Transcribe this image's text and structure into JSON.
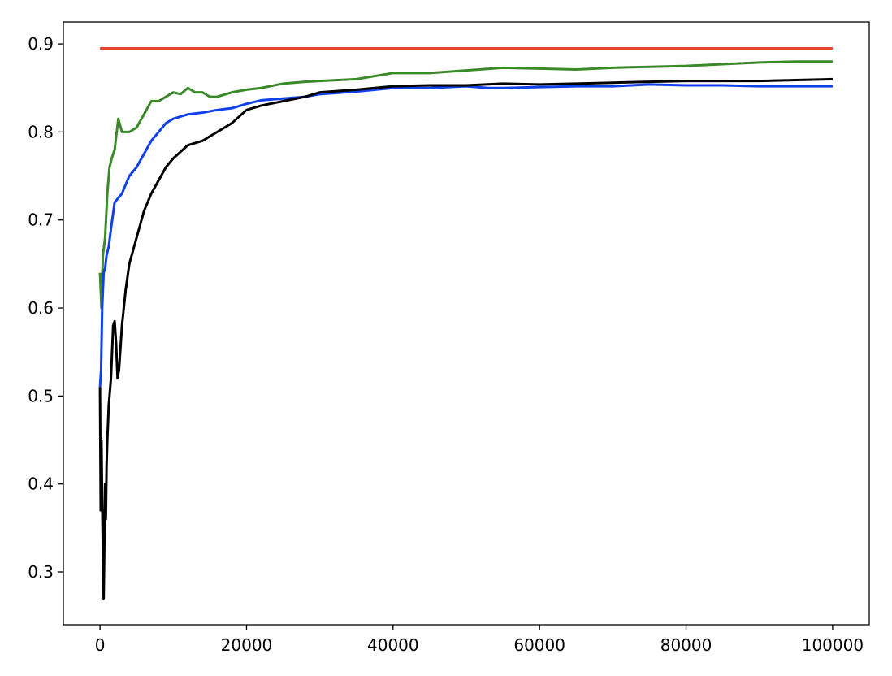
{
  "chart_data": {
    "type": "line",
    "title": "",
    "xlabel": "",
    "ylabel": "",
    "xlim": [
      -5000,
      105000
    ],
    "ylim": [
      0.24,
      0.925
    ],
    "xticks": [
      0,
      20000,
      40000,
      60000,
      80000,
      100000
    ],
    "xtick_labels": [
      "0",
      "20000",
      "40000",
      "60000",
      "80000",
      "100000"
    ],
    "yticks": [
      0.3,
      0.4,
      0.5,
      0.6,
      0.7,
      0.8,
      0.9
    ],
    "ytick_labels": [
      "0.3",
      "0.4",
      "0.5",
      "0.6",
      "0.7",
      "0.8",
      "0.9"
    ],
    "grid": false,
    "legend": "none",
    "series": [
      {
        "color": "#e8432d",
        "points": [
          [
            0,
            0.895
          ],
          [
            100000,
            0.895
          ]
        ]
      },
      {
        "color": "#3a8a2a",
        "points": [
          [
            0,
            0.64
          ],
          [
            200,
            0.6
          ],
          [
            400,
            0.66
          ],
          [
            700,
            0.68
          ],
          [
            1000,
            0.73
          ],
          [
            1300,
            0.76
          ],
          [
            1600,
            0.77
          ],
          [
            2000,
            0.78
          ],
          [
            2500,
            0.815
          ],
          [
            3000,
            0.8
          ],
          [
            3500,
            0.8
          ],
          [
            4000,
            0.8
          ],
          [
            5000,
            0.805
          ],
          [
            6000,
            0.82
          ],
          [
            7000,
            0.835
          ],
          [
            8000,
            0.835
          ],
          [
            9000,
            0.84
          ],
          [
            10000,
            0.845
          ],
          [
            11000,
            0.843
          ],
          [
            12000,
            0.85
          ],
          [
            13000,
            0.845
          ],
          [
            14000,
            0.845
          ],
          [
            15000,
            0.84
          ],
          [
            16000,
            0.84
          ],
          [
            18000,
            0.845
          ],
          [
            20000,
            0.848
          ],
          [
            22000,
            0.85
          ],
          [
            25000,
            0.855
          ],
          [
            28000,
            0.857
          ],
          [
            30000,
            0.858
          ],
          [
            35000,
            0.86
          ],
          [
            40000,
            0.867
          ],
          [
            45000,
            0.867
          ],
          [
            50000,
            0.87
          ],
          [
            55000,
            0.873
          ],
          [
            60000,
            0.872
          ],
          [
            65000,
            0.871
          ],
          [
            70000,
            0.873
          ],
          [
            75000,
            0.874
          ],
          [
            80000,
            0.875
          ],
          [
            85000,
            0.877
          ],
          [
            90000,
            0.879
          ],
          [
            95000,
            0.88
          ],
          [
            100000,
            0.88
          ]
        ]
      },
      {
        "color": "#1040e8",
        "points": [
          [
            0,
            0.51
          ],
          [
            150,
            0.53
          ],
          [
            300,
            0.6
          ],
          [
            500,
            0.64
          ],
          [
            700,
            0.645
          ],
          [
            900,
            0.66
          ],
          [
            1200,
            0.67
          ],
          [
            1500,
            0.69
          ],
          [
            2000,
            0.72
          ],
          [
            2500,
            0.725
          ],
          [
            3000,
            0.73
          ],
          [
            4000,
            0.75
          ],
          [
            5000,
            0.76
          ],
          [
            6000,
            0.775
          ],
          [
            7000,
            0.79
          ],
          [
            8000,
            0.8
          ],
          [
            9000,
            0.81
          ],
          [
            10000,
            0.815
          ],
          [
            12000,
            0.82
          ],
          [
            14000,
            0.822
          ],
          [
            16000,
            0.825
          ],
          [
            18000,
            0.827
          ],
          [
            20000,
            0.832
          ],
          [
            22000,
            0.836
          ],
          [
            25000,
            0.838
          ],
          [
            28000,
            0.84
          ],
          [
            30000,
            0.843
          ],
          [
            35000,
            0.846
          ],
          [
            40000,
            0.85
          ],
          [
            45000,
            0.85
          ],
          [
            50000,
            0.852
          ],
          [
            53000,
            0.85
          ],
          [
            55000,
            0.85
          ],
          [
            60000,
            0.851
          ],
          [
            65000,
            0.852
          ],
          [
            70000,
            0.852
          ],
          [
            75000,
            0.854
          ],
          [
            80000,
            0.853
          ],
          [
            85000,
            0.853
          ],
          [
            90000,
            0.852
          ],
          [
            95000,
            0.852
          ],
          [
            100000,
            0.852
          ]
        ]
      },
      {
        "color": "#000000",
        "points": [
          [
            0,
            0.51
          ],
          [
            100,
            0.37
          ],
          [
            200,
            0.45
          ],
          [
            300,
            0.38
          ],
          [
            400,
            0.32
          ],
          [
            500,
            0.27
          ],
          [
            600,
            0.33
          ],
          [
            700,
            0.4
          ],
          [
            800,
            0.36
          ],
          [
            900,
            0.42
          ],
          [
            1000,
            0.45
          ],
          [
            1200,
            0.49
          ],
          [
            1500,
            0.52
          ],
          [
            1800,
            0.58
          ],
          [
            2000,
            0.585
          ],
          [
            2200,
            0.56
          ],
          [
            2400,
            0.52
          ],
          [
            2600,
            0.53
          ],
          [
            3000,
            0.58
          ],
          [
            3500,
            0.62
          ],
          [
            4000,
            0.65
          ],
          [
            5000,
            0.68
          ],
          [
            6000,
            0.71
          ],
          [
            7000,
            0.73
          ],
          [
            8000,
            0.745
          ],
          [
            9000,
            0.76
          ],
          [
            10000,
            0.77
          ],
          [
            12000,
            0.785
          ],
          [
            14000,
            0.79
          ],
          [
            16000,
            0.8
          ],
          [
            18000,
            0.81
          ],
          [
            20000,
            0.825
          ],
          [
            22000,
            0.83
          ],
          [
            25000,
            0.835
          ],
          [
            28000,
            0.84
          ],
          [
            30000,
            0.845
          ],
          [
            35000,
            0.848
          ],
          [
            40000,
            0.852
          ],
          [
            45000,
            0.853
          ],
          [
            50000,
            0.853
          ],
          [
            55000,
            0.855
          ],
          [
            60000,
            0.854
          ],
          [
            65000,
            0.855
          ],
          [
            70000,
            0.856
          ],
          [
            75000,
            0.857
          ],
          [
            80000,
            0.858
          ],
          [
            85000,
            0.858
          ],
          [
            90000,
            0.858
          ],
          [
            95000,
            0.859
          ],
          [
            100000,
            0.86
          ]
        ]
      }
    ]
  }
}
